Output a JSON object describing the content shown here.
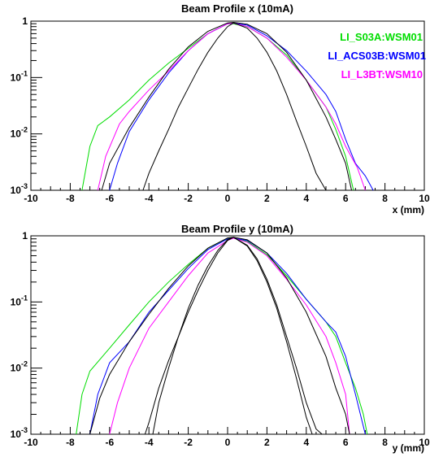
{
  "chart_data": [
    {
      "type": "line",
      "title": "Beam Profile x (10mA)",
      "xlabel": "x (mm)",
      "ylabel": "",
      "xlim": [
        -10,
        10
      ],
      "ylim": [
        0.001,
        1
      ],
      "yscale": "log",
      "grid": false,
      "legend_position": "top-right",
      "xticks": [
        -10,
        -8,
        -6,
        -4,
        -2,
        0,
        2,
        4,
        6,
        8,
        10
      ],
      "xtick_labels": [
        "-10",
        "-8",
        "-6",
        "-4",
        "-2",
        "0",
        "2",
        "4",
        "6",
        "8",
        "10"
      ],
      "yticks": [
        {
          "value": 1,
          "base": "1",
          "exp": ""
        },
        {
          "value": 0.1,
          "base": "10",
          "exp": "-1"
        },
        {
          "value": 0.01,
          "base": "10",
          "exp": "-2"
        },
        {
          "value": 0.001,
          "base": "10",
          "exp": "-3"
        }
      ],
      "series": [
        {
          "name": "LI_S03A:WSM01",
          "color": "#00dd00",
          "legend": true,
          "x": [
            -7.4,
            -7.0,
            -6.6,
            -6.0,
            -5.0,
            -4.0,
            -3.0,
            -2.0,
            -1.0,
            0.0,
            0.3,
            1.0,
            2.0,
            3.0,
            4.0,
            5.0,
            5.5,
            6.0,
            6.4
          ],
          "y": [
            0.001,
            0.006,
            0.014,
            0.02,
            0.04,
            0.09,
            0.18,
            0.33,
            0.6,
            0.9,
            0.9,
            0.8,
            0.5,
            0.25,
            0.09,
            0.03,
            0.012,
            0.004,
            0.001
          ]
        },
        {
          "name": "LI_ACS03B:WSM01",
          "color": "#0000ff",
          "legend": true,
          "x": [
            -6.0,
            -5.6,
            -5.0,
            -4.0,
            -3.0,
            -2.0,
            -1.0,
            0.0,
            0.3,
            1.0,
            2.0,
            3.0,
            4.0,
            5.0,
            5.5,
            6.0,
            6.5,
            7.0,
            7.4
          ],
          "y": [
            0.001,
            0.003,
            0.011,
            0.04,
            0.12,
            0.3,
            0.6,
            0.9,
            0.92,
            0.85,
            0.55,
            0.3,
            0.13,
            0.05,
            0.025,
            0.008,
            0.003,
            0.0018,
            0.001
          ]
        },
        {
          "name": "LI_L3BT:WSM10",
          "color": "#ff00ff",
          "legend": true,
          "x": [
            -6.6,
            -6.2,
            -5.5,
            -5.0,
            -4.0,
            -3.0,
            -2.0,
            -1.0,
            0.0,
            0.3,
            1.0,
            2.0,
            3.0,
            4.0,
            5.0,
            5.5,
            6.0,
            6.6,
            7.0
          ],
          "y": [
            0.001,
            0.004,
            0.015,
            0.025,
            0.06,
            0.13,
            0.3,
            0.6,
            0.9,
            0.92,
            0.8,
            0.5,
            0.23,
            0.09,
            0.03,
            0.015,
            0.006,
            0.0025,
            0.001
          ]
        },
        {
          "name": "",
          "color": "#000000",
          "legend": false,
          "x": [
            -6.4,
            -6.0,
            -5.0,
            -4.0,
            -3.0,
            -2.0,
            -1.0,
            0.0,
            0.3,
            1.0,
            2.0,
            3.0,
            4.0,
            5.0,
            5.5,
            6.0,
            6.3
          ],
          "y": [
            0.001,
            0.003,
            0.013,
            0.045,
            0.14,
            0.35,
            0.66,
            0.93,
            0.95,
            0.88,
            0.6,
            0.28,
            0.09,
            0.02,
            0.008,
            0.003,
            0.001
          ]
        },
        {
          "name": "",
          "color": "#000000",
          "legend": false,
          "x": [
            -4.3,
            -4.0,
            -3.5,
            -3.0,
            -2.5,
            -2.0,
            -1.5,
            -1.0,
            -0.5,
            0.0,
            0.3,
            1.0,
            1.5,
            2.0,
            2.5,
            3.0,
            3.5,
            4.0,
            4.5,
            5.0
          ],
          "y": [
            0.001,
            0.002,
            0.005,
            0.012,
            0.03,
            0.065,
            0.14,
            0.28,
            0.5,
            0.8,
            0.93,
            0.75,
            0.5,
            0.28,
            0.13,
            0.05,
            0.017,
            0.006,
            0.002,
            0.001
          ]
        }
      ]
    },
    {
      "type": "line",
      "title": "Beam Profile y (10mA)",
      "xlabel": "y (mm)",
      "ylabel": "",
      "xlim": [
        -10,
        10
      ],
      "ylim": [
        0.001,
        1
      ],
      "yscale": "log",
      "grid": false,
      "xticks": [
        -10,
        -8,
        -6,
        -4,
        -2,
        0,
        2,
        4,
        6,
        8,
        10
      ],
      "xtick_labels": [
        "-10",
        "-8",
        "-6",
        "-4",
        "-2",
        "0",
        "2",
        "4",
        "6",
        "8",
        "10"
      ],
      "yticks": [
        {
          "value": 1,
          "base": "1",
          "exp": ""
        },
        {
          "value": 0.1,
          "base": "10",
          "exp": "-1"
        },
        {
          "value": 0.01,
          "base": "10",
          "exp": "-2"
        },
        {
          "value": 0.001,
          "base": "10",
          "exp": "-3"
        }
      ],
      "series": [
        {
          "name": "LI_S03A:WSM01",
          "color": "#00dd00",
          "x": [
            -7.7,
            -7.4,
            -7.0,
            -6.0,
            -5.0,
            -4.0,
            -3.0,
            -2.0,
            -1.0,
            0.0,
            0.3,
            1.0,
            2.0,
            3.0,
            4.0,
            5.0,
            5.5,
            6.0,
            6.5,
            6.9,
            7.1
          ],
          "y": [
            0.001,
            0.004,
            0.009,
            0.02,
            0.045,
            0.1,
            0.2,
            0.37,
            0.65,
            0.92,
            0.92,
            0.82,
            0.52,
            0.25,
            0.11,
            0.05,
            0.03,
            0.012,
            0.005,
            0.002,
            0.001
          ]
        },
        {
          "name": "LI_ACS03B:WSM01",
          "color": "#0000ff",
          "x": [
            -7.0,
            -6.6,
            -6.0,
            -5.0,
            -4.0,
            -3.0,
            -2.0,
            -1.0,
            0.0,
            0.3,
            1.0,
            2.0,
            3.0,
            4.0,
            5.0,
            5.5,
            6.0,
            6.5,
            7.0
          ],
          "y": [
            0.001,
            0.004,
            0.012,
            0.025,
            0.07,
            0.15,
            0.32,
            0.62,
            0.9,
            0.92,
            0.85,
            0.55,
            0.27,
            0.11,
            0.05,
            0.035,
            0.015,
            0.004,
            0.001
          ]
        },
        {
          "name": "LI_L3BT:WSM10",
          "color": "#ff00ff",
          "x": [
            -6.0,
            -5.6,
            -5.0,
            -4.5,
            -4.0,
            -3.0,
            -2.0,
            -1.0,
            0.0,
            0.3,
            1.0,
            2.0,
            3.0,
            4.0,
            5.0,
            5.5,
            6.0,
            6.2
          ],
          "y": [
            0.001,
            0.003,
            0.01,
            0.02,
            0.04,
            0.1,
            0.25,
            0.55,
            0.85,
            0.92,
            0.8,
            0.5,
            0.22,
            0.09,
            0.03,
            0.012,
            0.004,
            0.001
          ]
        },
        {
          "name": "",
          "color": "#000000",
          "x": [
            -7.0,
            -6.5,
            -6.0,
            -5.0,
            -4.0,
            -3.0,
            -2.0,
            -1.0,
            0.0,
            0.3,
            1.0,
            2.0,
            3.0,
            4.0,
            5.0,
            5.5,
            6.0,
            6.2
          ],
          "y": [
            0.001,
            0.0035,
            0.008,
            0.025,
            0.065,
            0.16,
            0.35,
            0.65,
            0.93,
            0.95,
            0.87,
            0.55,
            0.23,
            0.07,
            0.015,
            0.005,
            0.002,
            0.001
          ]
        },
        {
          "name": "",
          "color": "#000000",
          "x": [
            -4.2,
            -4.0,
            -3.5,
            -3.0,
            -2.5,
            -2.0,
            -1.5,
            -1.0,
            -0.5,
            0.0,
            0.3,
            1.0,
            1.5,
            2.0,
            2.5,
            3.0,
            3.5,
            4.0,
            4.5,
            4.8
          ],
          "y": [
            0.001,
            0.0015,
            0.005,
            0.013,
            0.03,
            0.07,
            0.15,
            0.3,
            0.55,
            0.85,
            0.95,
            0.72,
            0.45,
            0.22,
            0.09,
            0.03,
            0.01,
            0.003,
            0.0012,
            0.001
          ]
        },
        {
          "name": "",
          "color": "#000000",
          "x": [
            -3.8,
            -3.5,
            -3.0,
            -2.5,
            -2.0,
            -1.5,
            -1.0,
            -0.5,
            0.0,
            0.3,
            1.0,
            1.5,
            2.0,
            2.5,
            3.0,
            3.5,
            4.0,
            4.3
          ],
          "y": [
            0.001,
            0.003,
            0.01,
            0.03,
            0.08,
            0.18,
            0.35,
            0.6,
            0.88,
            0.95,
            0.7,
            0.42,
            0.2,
            0.08,
            0.025,
            0.007,
            0.0018,
            0.001
          ]
        }
      ]
    }
  ]
}
